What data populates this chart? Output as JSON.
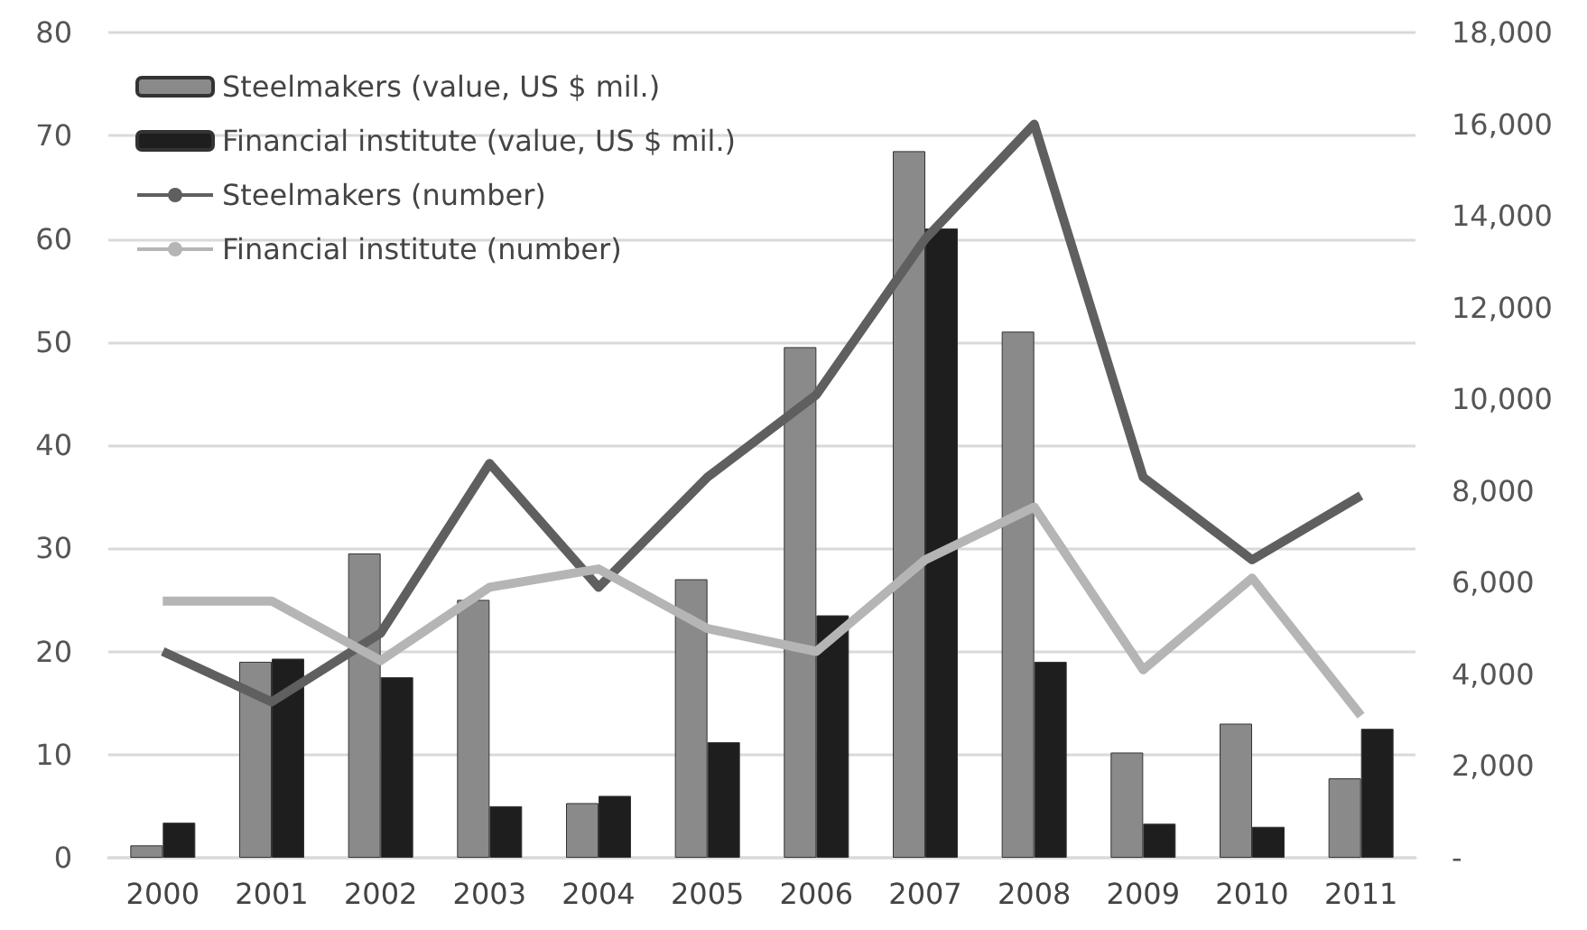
{
  "chart_data": {
    "type": "bar",
    "categories": [
      "2000",
      "2001",
      "2002",
      "2003",
      "2004",
      "2005",
      "2006",
      "2007",
      "2008",
      "2009",
      "2010",
      "2011"
    ],
    "series": [
      {
        "name": "Steelmakers (value, US $ mil.)",
        "color": "#8a8a8a",
        "values": [
          1.2,
          19,
          29.5,
          25,
          5.3,
          27,
          49.5,
          68.5,
          51,
          10.2,
          13,
          7.7
        ]
      },
      {
        "name": "Financial institute (value, US $ mil.)",
        "color": "#1e1e1e",
        "values": [
          3.4,
          19.3,
          17.5,
          5,
          6,
          11.2,
          23.5,
          61,
          19,
          3.3,
          3,
          12.5
        ]
      },
      {
        "name": "Steelmakers (number)",
        "type": "line",
        "axis": "y2",
        "color": "#5f5f5f",
        "values": [
          4500,
          3400,
          4900,
          8600,
          5900,
          8300,
          10100,
          13500,
          16000,
          8300,
          6500,
          7900
        ]
      },
      {
        "name": "Financial institute (number)",
        "type": "line",
        "axis": "y2",
        "color": "#b5b5b5",
        "values": [
          5600,
          5600,
          4300,
          5900,
          6300,
          5000,
          4500,
          6500,
          7650,
          4100,
          6100,
          3100
        ]
      }
    ],
    "ylim": [
      0,
      80
    ],
    "yticks": [
      0,
      10,
      20,
      30,
      40,
      50,
      60,
      70,
      80
    ],
    "y2lim": [
      0,
      18000
    ],
    "y2ticks": [
      {
        "value": 0,
        "label": "-"
      },
      {
        "value": 2000,
        "label": "2,000"
      },
      {
        "value": 4000,
        "label": "4,000"
      },
      {
        "value": 6000,
        "label": "6,000"
      },
      {
        "value": 8000,
        "label": "8,000"
      },
      {
        "value": 10000,
        "label": "10,000"
      },
      {
        "value": 12000,
        "label": "12,000"
      },
      {
        "value": 14000,
        "label": "14,000"
      },
      {
        "value": 16000,
        "label": "16,000"
      },
      {
        "value": 18000,
        "label": "18,000"
      }
    ],
    "grid": "y",
    "legend": "top left",
    "marker": "none"
  }
}
